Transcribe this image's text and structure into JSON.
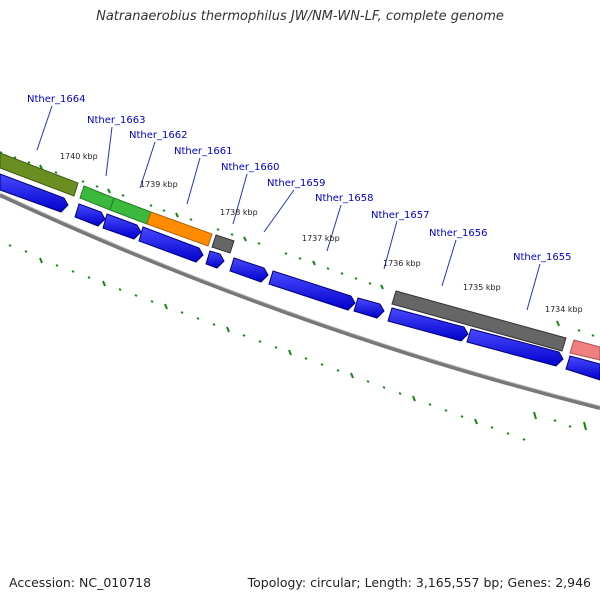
{
  "title": "Natranaerobius thermophilus JW/NM-WN-LF, complete genome",
  "footer": {
    "accession": "Accession: NC_010718",
    "summary": "Topology: circular; Length: 3,165,557 bp; Genes: 2,946"
  },
  "gene_labels": [
    "Nther_1664",
    "Nther_1663",
    "Nther_1662",
    "Nther_1661",
    "Nther_1660",
    "Nther_1659",
    "Nther_1658",
    "Nther_1657",
    "Nther_1656",
    "Nther_1655"
  ],
  "kbp_labels": [
    "1740 kbp",
    "1739 kbp",
    "1738 kbp",
    "1737 kbp",
    "1736 kbp",
    "1735 kbp",
    "1734 kbp"
  ],
  "colors": {
    "cds": "#0000ff",
    "olive": "#6b8e23",
    "green": "#3cb83c",
    "orange": "#ff8c00",
    "gray": "#666666",
    "pink": "#f08080",
    "backbone": "#777777",
    "tick": "#118811",
    "label": "#0000cc"
  }
}
